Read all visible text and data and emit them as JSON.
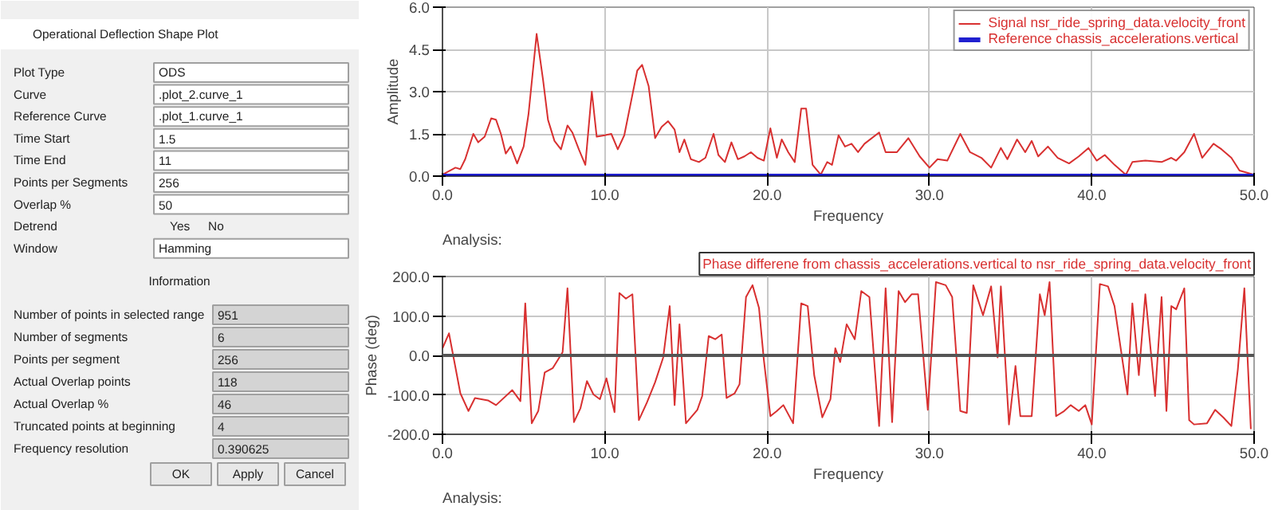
{
  "chart_data": [
    {
      "type": "other",
      "title": "Operational Deflection Shape Plot",
      "annotations": [
        "Plot Type",
        "ODS",
        "Curve",
        ".plot_2.curve_1",
        "Reference Curve",
        ".plot_1.curve_1",
        "Time Start",
        "1.5",
        "Time End",
        "11",
        "Points per Segments",
        "256",
        "Overlap %",
        "50",
        "Detrend",
        "Yes",
        "No",
        "Window",
        "Hamming",
        "Information",
        "Number of points in selected range",
        "951",
        "Number of segments",
        "6",
        "Points per segment",
        "256",
        "Actual Overlap points",
        "118",
        "Actual Overlap %",
        "46",
        "Truncated points at beginning",
        "4",
        "Frequency resolution",
        "0.390625",
        "OK",
        "Apply",
        "Cancel"
      ]
    },
    {
      "type": "line",
      "xlabel": "Frequency",
      "ylabel": "Amplitude",
      "annotations": [
        "Analysis:"
      ],
      "xlim": [
        0,
        50
      ],
      "ylim": [
        0,
        6
      ],
      "xticks": [
        {
          "value": 0,
          "label": "0.0"
        },
        {
          "value": 10,
          "label": "10.0"
        },
        {
          "value": 20,
          "label": "20.0"
        },
        {
          "value": 30,
          "label": "30.0"
        },
        {
          "value": 40,
          "label": "40.0"
        },
        {
          "value": 50,
          "label": "50.0"
        }
      ],
      "yticks": [
        {
          "value": 0,
          "label": "0.0"
        },
        {
          "value": 1.5,
          "label": "1.5"
        },
        {
          "value": 3,
          "label": "3.0"
        },
        {
          "value": 4.5,
          "label": "4.5"
        },
        {
          "value": 6,
          "label": "6.0"
        }
      ],
      "grid": true,
      "legend": "top right",
      "series": [
        {
          "name": "Signal nsr_ride_spring_data.velocity_front",
          "color": "#d83030",
          "x": [
            0,
            0.8,
            1.1,
            1.4,
            1.9,
            2.2,
            2.6,
            3.0,
            3.3,
            3.6,
            3.9,
            4.2,
            4.6,
            5.0,
            5.3,
            5.8,
            6.2,
            6.5,
            6.9,
            7.3,
            7.7,
            8.0,
            8.4,
            8.8,
            9.2,
            9.5,
            10.0,
            10.4,
            10.8,
            11.2,
            11.6,
            12.0,
            12.3,
            12.7,
            13.1,
            13.5,
            13.9,
            14.3,
            14.6,
            14.9,
            15.3,
            15.8,
            16.2,
            16.7,
            17.0,
            17.4,
            17.8,
            18.2,
            18.6,
            19.0,
            19.4,
            19.8,
            20.2,
            20.6,
            20.9,
            21.3,
            21.7,
            22.1,
            22.4,
            22.8,
            23.3,
            23.7,
            24.0,
            24.4,
            24.8,
            25.2,
            25.6,
            26.0,
            26.9,
            27.3,
            28.0,
            28.7,
            29.4,
            30.0,
            30.5,
            31.1,
            31.9,
            32.5,
            33.2,
            33.8,
            34.4,
            34.8,
            35.4,
            35.9,
            36.3,
            36.7,
            37.3,
            37.9,
            38.6,
            39.2,
            39.8,
            40.3,
            40.8,
            41.4,
            42.1,
            42.5,
            43.3,
            44.3,
            44.9,
            45.2,
            45.7,
            46.3,
            46.8,
            47.5,
            48.0,
            48.6,
            49.1,
            50.0
          ],
          "values": [
            0.05,
            0.3,
            0.25,
            0.6,
            1.5,
            1.2,
            1.4,
            2.05,
            2.0,
            1.5,
            0.8,
            1.05,
            0.45,
            1.05,
            2.2,
            5.05,
            3.4,
            2.0,
            1.25,
            0.95,
            1.8,
            1.55,
            0.95,
            0.4,
            3.0,
            1.4,
            1.45,
            1.5,
            0.95,
            1.45,
            2.6,
            3.75,
            3.95,
            3.2,
            1.35,
            1.75,
            1.95,
            1.65,
            0.85,
            1.3,
            0.6,
            0.5,
            0.65,
            1.5,
            0.75,
            0.5,
            1.2,
            0.6,
            0.7,
            0.85,
            0.65,
            0.55,
            1.7,
            0.65,
            1.3,
            0.85,
            0.5,
            2.4,
            2.4,
            0.4,
            0.05,
            0.5,
            0.4,
            1.45,
            1.05,
            1.15,
            0.85,
            1.15,
            1.55,
            0.85,
            0.85,
            1.35,
            0.7,
            0.3,
            0.6,
            0.55,
            1.5,
            0.85,
            0.65,
            0.3,
            1.0,
            0.6,
            1.3,
            0.85,
            1.25,
            0.7,
            1.05,
            0.65,
            0.45,
            0.7,
            1.0,
            0.55,
            0.75,
            0.4,
            0.05,
            0.5,
            0.55,
            0.5,
            0.65,
            0.55,
            0.85,
            1.5,
            0.65,
            1.15,
            0.95,
            0.65,
            0.2,
            0.05
          ]
        },
        {
          "name": "Reference chassis_accelerations.vertical",
          "color": "#2020d0",
          "x": [
            0,
            50
          ],
          "values": [
            0,
            0
          ]
        }
      ]
    },
    {
      "type": "line",
      "xlabel": "Frequency",
      "ylabel": "Phase (deg)",
      "annotations": [
        "Analysis:"
      ],
      "xlim": [
        0,
        50
      ],
      "ylim": [
        -200,
        200
      ],
      "xticks": [
        {
          "value": 0,
          "label": "0.0"
        },
        {
          "value": 10,
          "label": "10.0"
        },
        {
          "value": 20,
          "label": "20.0"
        },
        {
          "value": 30,
          "label": "30.0"
        },
        {
          "value": 40,
          "label": "40.0"
        },
        {
          "value": 50,
          "label": "50.0"
        }
      ],
      "yticks": [
        {
          "value": -200,
          "label": "-200.0"
        },
        {
          "value": -100,
          "label": "-100.0"
        },
        {
          "value": 0,
          "label": "0.0"
        },
        {
          "value": 100,
          "label": "100.0"
        },
        {
          "value": 200,
          "label": "200.0"
        }
      ],
      "grid": true,
      "legend": "top",
      "ref_lines": [
        {
          "axis": "y",
          "value": 0,
          "color": "#555555"
        }
      ],
      "series": [
        {
          "name": "Phase differene from chassis_accelerations.vertical to nsr_ride_spring_data.velocity_front",
          "color": "#d83030",
          "x": [
            0,
            0.4,
            1.1,
            1.6,
            2.0,
            2.8,
            3.3,
            4.3,
            4.8,
            5.1,
            5.5,
            5.9,
            6.3,
            6.8,
            7.4,
            7.7,
            8.1,
            8.5,
            8.9,
            9.3,
            9.7,
            10.1,
            10.6,
            10.9,
            11.3,
            11.7,
            12.1,
            12.6,
            13.1,
            13.6,
            14.0,
            14.3,
            14.6,
            15.0,
            15.7,
            16.0,
            16.4,
            16.8,
            17.2,
            17.5,
            18.0,
            18.3,
            18.7,
            19.1,
            19.5,
            19.8,
            20.2,
            20.6,
            21.0,
            21.6,
            22.1,
            22.5,
            22.9,
            23.4,
            23.9,
            24.2,
            24.5,
            24.9,
            25.4,
            25.8,
            26.3,
            26.9,
            27.3,
            27.7,
            28.1,
            28.5,
            28.9,
            29.3,
            29.9,
            30.4,
            31.0,
            31.4,
            31.9,
            32.3,
            32.7,
            33.3,
            33.8,
            34.2,
            34.4,
            34.9,
            35.3,
            35.6,
            36.3,
            36.8,
            37.1,
            37.4,
            37.8,
            38.3,
            38.7,
            39.2,
            39.6,
            40.0,
            40.5,
            41.0,
            41.4,
            42.2,
            42.5,
            42.9,
            43.3,
            43.9,
            44.3,
            44.6,
            44.9,
            45.2,
            45.7,
            46.0,
            46.3,
            47.1,
            47.6,
            48.1,
            48.6,
            49.0,
            49.4,
            49.8
          ],
          "values": [
            18,
            56,
            -96,
            -141,
            -108,
            -114,
            -126,
            -88,
            -116,
            132,
            -172,
            -141,
            -43,
            -32,
            8,
            170,
            -169,
            -134,
            -65,
            -99,
            -111,
            -58,
            -144,
            158,
            144,
            155,
            -164,
            -119,
            -68,
            -5,
            125,
            -126,
            79,
            -172,
            -138,
            -103,
            49,
            41,
            53,
            -108,
            -96,
            -73,
            148,
            178,
            120,
            -12,
            -154,
            -141,
            -126,
            -172,
            132,
            125,
            -50,
            -157,
            -111,
            18,
            -17,
            79,
            41,
            163,
            148,
            -179,
            170,
            -169,
            163,
            135,
            155,
            155,
            -138,
            186,
            178,
            148,
            -141,
            -146,
            178,
            102,
            175,
            -5,
            175,
            -175,
            -27,
            -154,
            -154,
            155,
            102,
            186,
            -154,
            -141,
            -126,
            -141,
            -126,
            -175,
            181,
            175,
            125,
            -99,
            132,
            -50,
            155,
            -103,
            148,
            -141,
            125,
            117,
            170,
            -164,
            -175,
            -172,
            -138,
            -157,
            -179,
            -35,
            170,
            -187
          ]
        }
      ]
    }
  ]
}
